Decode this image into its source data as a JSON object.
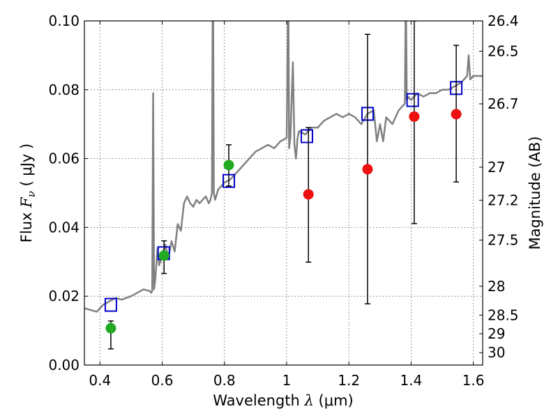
{
  "chart_data": {
    "type": "scatter",
    "xlabel": "Wavelength",
    "xlabel_symbol": "λ",
    "xlabel_unit": "(μm)",
    "ylabel": "Flux",
    "ylabel_symbol": "F",
    "ylabel_subscript": "ν",
    "ylabel_unit": "( μJy )",
    "y2label": "Magnitude (AB)",
    "xlim": [
      0.35,
      1.63
    ],
    "ylim": [
      0.0,
      0.1
    ],
    "grid": true,
    "x_ticks": [
      "0.4",
      "0.6",
      "0.8",
      "1",
      "1.2",
      "1.4",
      "1.6"
    ],
    "y_ticks": [
      "0.00",
      "0.02",
      "0.04",
      "0.06",
      "0.08",
      "0.10"
    ],
    "y2_ticks": [
      {
        "label": "26.4",
        "flux": 0.1
      },
      {
        "label": "26.5",
        "flux": 0.0912
      },
      {
        "label": "26.7",
        "flux": 0.0759
      },
      {
        "label": "27",
        "flux": 0.0575
      },
      {
        "label": "27.2",
        "flux": 0.0479
      },
      {
        "label": "27.5",
        "flux": 0.0363
      },
      {
        "label": "28",
        "flux": 0.0229
      },
      {
        "label": "28.5",
        "flux": 0.0145
      },
      {
        "label": "29",
        "flux": 0.0091
      },
      {
        "label": "30",
        "flux": 0.0036
      }
    ],
    "colors": {
      "spectrum": "#808080",
      "model_box": "#0000cc",
      "detection": "#22aa22",
      "low_significance": "#ee1111",
      "error_bar": "#000000",
      "grid": "#555555"
    },
    "series": [
      {
        "kind": "spectrum",
        "x": [
          0.35,
          0.37,
          0.39,
          0.41,
          0.43,
          0.45,
          0.47,
          0.5,
          0.52,
          0.54,
          0.56,
          0.565,
          0.568,
          0.571,
          0.574,
          0.578,
          0.585,
          0.59,
          0.6,
          0.61,
          0.62,
          0.63,
          0.64,
          0.65,
          0.66,
          0.67,
          0.68,
          0.69,
          0.7,
          0.71,
          0.72,
          0.74,
          0.75,
          0.755,
          0.76,
          0.762,
          0.764,
          0.766,
          0.77,
          0.78,
          0.79,
          0.8,
          0.82,
          0.84,
          0.86,
          0.88,
          0.9,
          0.92,
          0.94,
          0.96,
          0.98,
          1.0,
          1.004,
          1.006,
          1.008,
          1.012,
          1.02,
          1.025,
          1.03,
          1.035,
          1.04,
          1.06,
          1.08,
          1.1,
          1.12,
          1.14,
          1.16,
          1.18,
          1.2,
          1.22,
          1.24,
          1.26,
          1.28,
          1.29,
          1.3,
          1.31,
          1.32,
          1.34,
          1.36,
          1.37,
          1.38,
          1.382,
          1.384,
          1.386,
          1.39,
          1.4,
          1.42,
          1.44,
          1.46,
          1.48,
          1.5,
          1.52,
          1.54,
          1.56,
          1.57,
          1.58,
          1.585,
          1.59,
          1.6,
          1.63
        ],
        "y": [
          0.0165,
          0.016,
          0.0155,
          0.0175,
          0.0185,
          0.0195,
          0.019,
          0.02,
          0.021,
          0.022,
          0.0215,
          0.021,
          0.0215,
          0.079,
          0.022,
          0.025,
          0.034,
          0.029,
          0.0315,
          0.035,
          0.031,
          0.036,
          0.033,
          0.041,
          0.039,
          0.047,
          0.049,
          0.047,
          0.046,
          0.048,
          0.047,
          0.049,
          0.047,
          0.048,
          0.05,
          0.1,
          0.1,
          0.05,
          0.048,
          0.051,
          0.052,
          0.053,
          0.054,
          0.056,
          0.058,
          0.06,
          0.062,
          0.063,
          0.064,
          0.063,
          0.065,
          0.066,
          0.1,
          0.1,
          0.063,
          0.066,
          0.088,
          0.064,
          0.06,
          0.066,
          0.068,
          0.067,
          0.069,
          0.069,
          0.071,
          0.072,
          0.073,
          0.072,
          0.073,
          0.072,
          0.07,
          0.073,
          0.074,
          0.065,
          0.07,
          0.065,
          0.072,
          0.07,
          0.074,
          0.075,
          0.076,
          0.1,
          0.1,
          0.077,
          0.078,
          0.077,
          0.079,
          0.078,
          0.079,
          0.079,
          0.08,
          0.08,
          0.081,
          0.082,
          0.083,
          0.084,
          0.09,
          0.083,
          0.084,
          0.084
        ]
      },
      {
        "kind": "model_photometry",
        "marker": "square",
        "x": [
          0.435,
          0.605,
          0.814,
          1.065,
          1.26,
          1.405,
          1.545
        ],
        "y": [
          0.0175,
          0.0325,
          0.0535,
          0.0665,
          0.073,
          0.077,
          0.0805
        ]
      },
      {
        "kind": "observed_detection",
        "marker": "circle",
        "x": [
          0.435,
          0.606,
          0.814
        ],
        "y": [
          0.0107,
          0.0318,
          0.0581
        ],
        "err_low": [
          0.0047,
          0.0266,
          0.052
        ],
        "err_high": [
          0.0128,
          0.0361,
          0.064
        ]
      },
      {
        "kind": "observed_low",
        "marker": "circle",
        "x": [
          1.07,
          1.26,
          1.41,
          1.545
        ],
        "y": [
          0.0496,
          0.0569,
          0.0722,
          0.0729
        ],
        "err_low": [
          0.0299,
          0.0178,
          0.0411,
          0.0532
        ],
        "err_high": [
          0.069,
          0.0961,
          0.1,
          0.0929
        ]
      }
    ]
  }
}
